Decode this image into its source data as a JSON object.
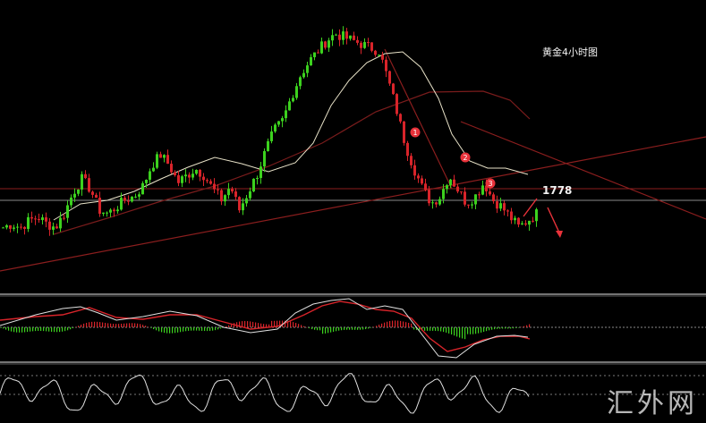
{
  "title": "黄金4小时图",
  "price_label": "1778",
  "watermark": "汇外网",
  "colors": {
    "background": "#000000",
    "bull": "#3cd11e",
    "bear": "#d8242a",
    "ma_fast": "#e8e2c8",
    "ma_slow": "#7a1c1c",
    "trendline": "#8b1e1e",
    "panel_border": "#9a9a9a",
    "marker": "#e8323a"
  },
  "chart_data": {
    "type": "candlestick",
    "instrument": "黄金",
    "timeframe": "4小时",
    "close_path": [
      1772,
      1773,
      1772,
      1774,
      1775,
      1773,
      1772,
      1776,
      1782,
      1786,
      1783,
      1777,
      1776,
      1778,
      1780,
      1781,
      1784,
      1790,
      1793,
      1790,
      1785,
      1787,
      1789,
      1787,
      1783,
      1780,
      1784,
      1777,
      1782,
      1787,
      1794,
      1800,
      1803,
      1810,
      1816,
      1820,
      1823,
      1826,
      1828,
      1827,
      1826,
      1825,
      1824,
      1823,
      1815,
      1806,
      1796,
      1789,
      1783,
      1779,
      1781,
      1787,
      1783,
      1779,
      1781,
      1785,
      1780,
      1778,
      1775,
      1772,
      1774,
      1776
    ],
    "labeled_levels": [
      1778
    ],
    "markers": [
      "1",
      "2",
      "3"
    ]
  }
}
